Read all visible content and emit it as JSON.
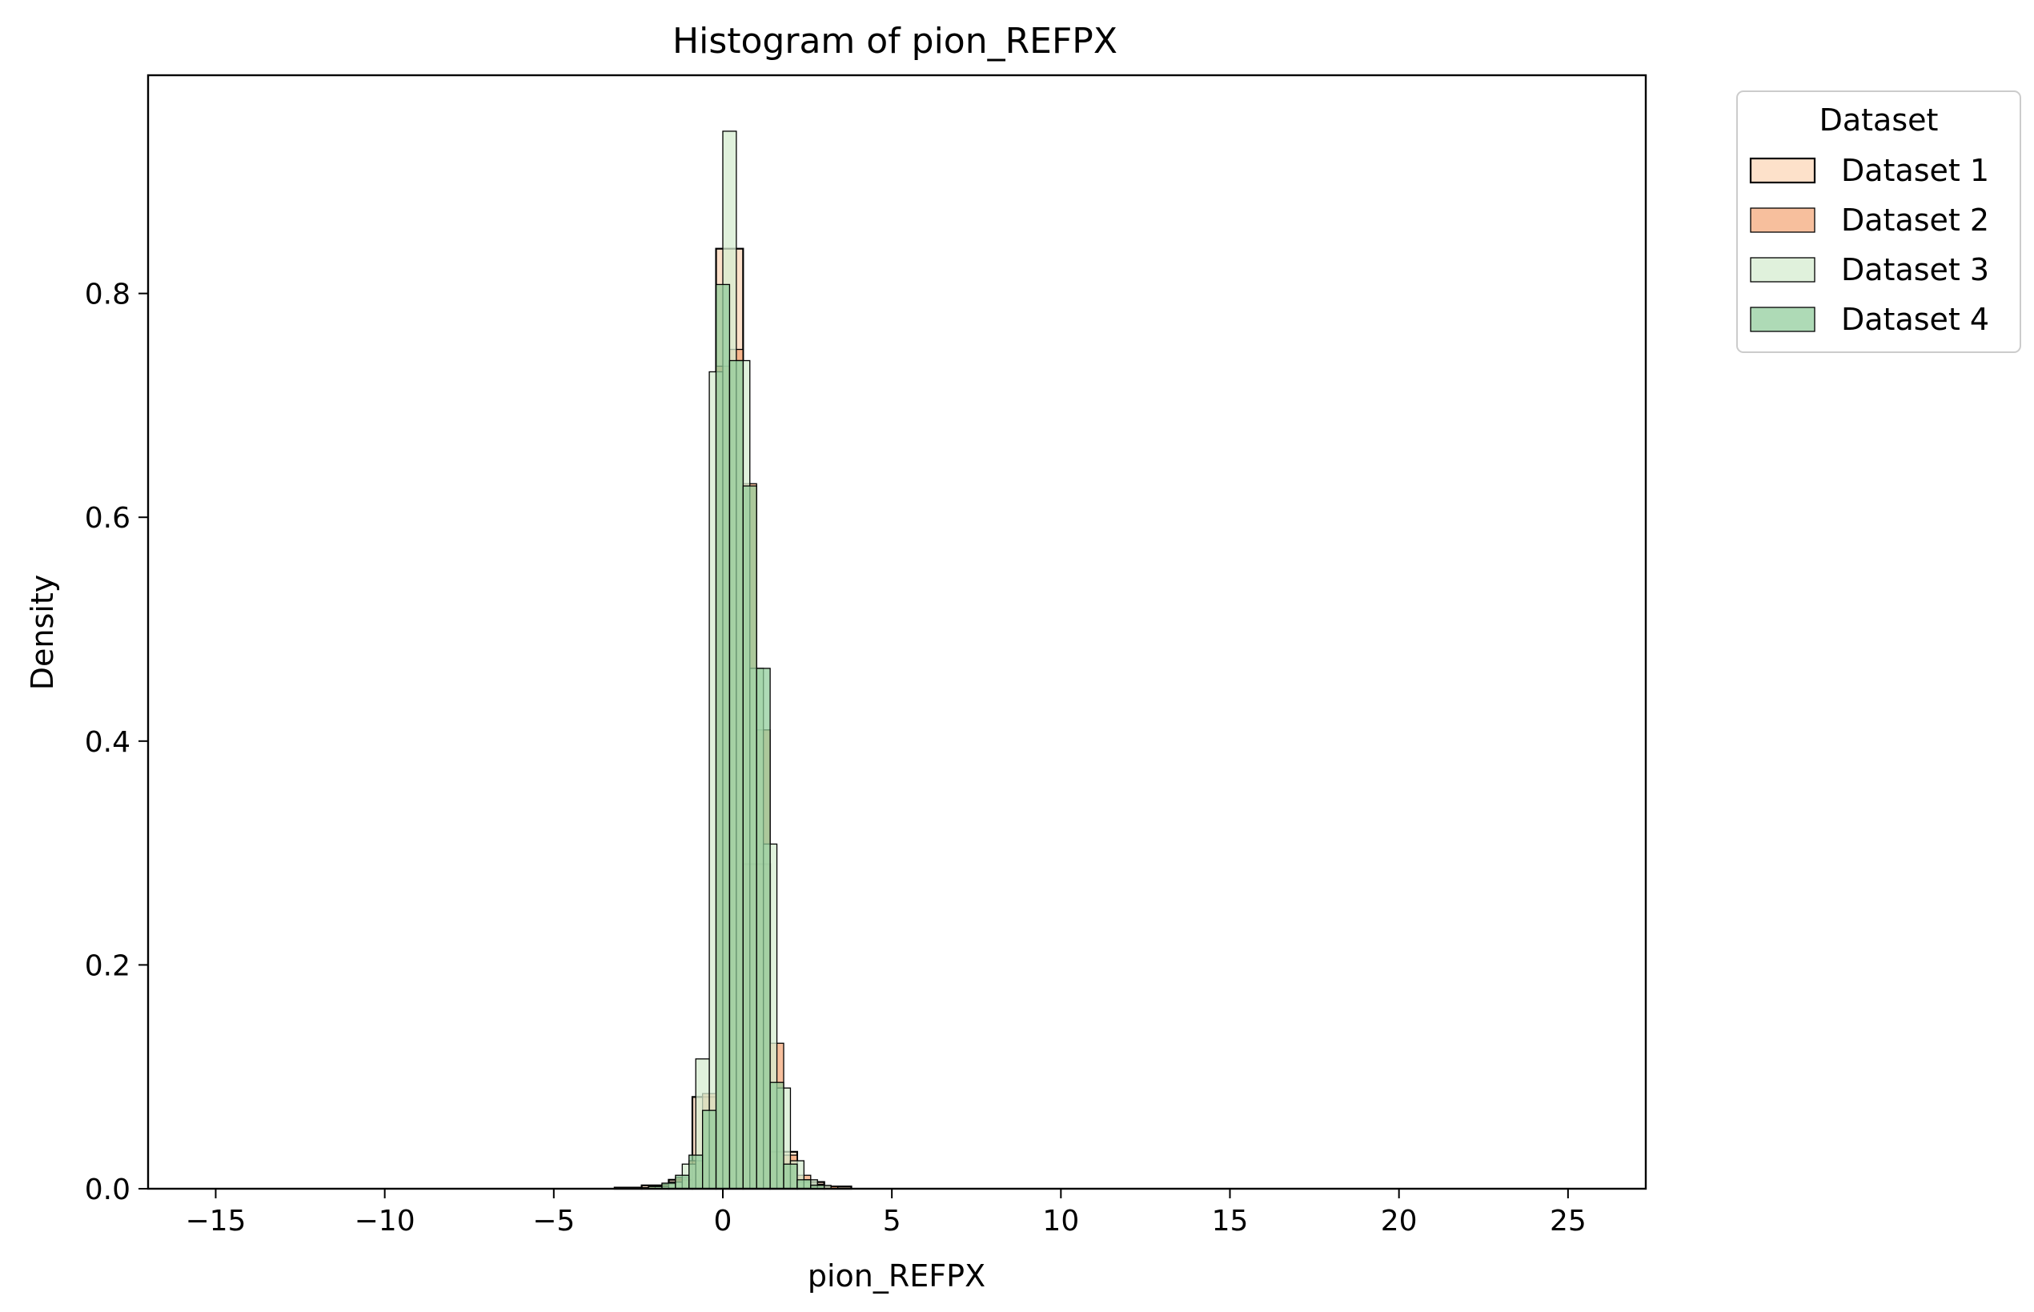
{
  "chart_data": {
    "type": "bar",
    "title": "Histogram of pion_REFPX",
    "xlabel": "pion_REFPX",
    "ylabel": "Density",
    "xlim": [
      -17,
      27.3
    ],
    "ylim": [
      0,
      0.995
    ],
    "xticks": [
      -15,
      -10,
      -5,
      0,
      5,
      10,
      15,
      20,
      25
    ],
    "xtick_labels": [
      "−15",
      "−10",
      "−5",
      "0",
      "5",
      "10",
      "15",
      "20",
      "25"
    ],
    "yticks": [
      0.0,
      0.2,
      0.4,
      0.6,
      0.8
    ],
    "ytick_labels": [
      "0.0",
      "0.2",
      "0.4",
      "0.6",
      "0.8"
    ],
    "grid": false,
    "legend": {
      "title": "Dataset",
      "placement": "outside-top-right"
    },
    "series": [
      {
        "name": "Dataset 1",
        "color": "#fcd5b5",
        "opacity": 0.72,
        "stroke_width": 2.2,
        "bins": [
          {
            "x0": -3.2,
            "x1": -2.4,
            "y": 0.001
          },
          {
            "x0": -2.4,
            "x1": -1.6,
            "y": 0.003
          },
          {
            "x0": -1.6,
            "x1": -0.9,
            "y": 0.008
          },
          {
            "x0": -0.9,
            "x1": -0.2,
            "y": 0.082
          },
          {
            "x0": -0.2,
            "x1": 0.6,
            "y": 0.84
          },
          {
            "x0": 0.6,
            "x1": 1.4,
            "y": 0.29
          },
          {
            "x0": 1.4,
            "x1": 2.2,
            "y": 0.033
          },
          {
            "x0": 2.2,
            "x1": 3.0,
            "y": 0.006
          },
          {
            "x0": 3.0,
            "x1": 3.8,
            "y": 0.002
          }
        ]
      },
      {
        "name": "Dataset 2",
        "color": "#f3a06e",
        "opacity": 0.68,
        "stroke_width": 1.3,
        "bins": [
          {
            "x0": -2.6,
            "x1": -2.2,
            "y": 0.001
          },
          {
            "x0": -2.2,
            "x1": -1.8,
            "y": 0.002
          },
          {
            "x0": -1.8,
            "x1": -1.4,
            "y": 0.004
          },
          {
            "x0": -1.4,
            "x1": -1.0,
            "y": 0.01
          },
          {
            "x0": -1.0,
            "x1": -0.6,
            "y": 0.025
          },
          {
            "x0": -0.6,
            "x1": -0.2,
            "y": 0.085
          },
          {
            "x0": -0.2,
            "x1": 0.2,
            "y": 0.735
          },
          {
            "x0": 0.2,
            "x1": 0.6,
            "y": 0.75
          },
          {
            "x0": 0.6,
            "x1": 1.0,
            "y": 0.63
          },
          {
            "x0": 1.0,
            "x1": 1.4,
            "y": 0.41
          },
          {
            "x0": 1.4,
            "x1": 1.8,
            "y": 0.13
          },
          {
            "x0": 1.8,
            "x1": 2.2,
            "y": 0.03
          },
          {
            "x0": 2.2,
            "x1": 2.6,
            "y": 0.012
          },
          {
            "x0": 2.6,
            "x1": 3.0,
            "y": 0.004
          },
          {
            "x0": 3.0,
            "x1": 3.4,
            "y": 0.002
          }
        ]
      },
      {
        "name": "Dataset 3",
        "color": "#d5ecd0",
        "opacity": 0.75,
        "stroke_width": 1.3,
        "bins": [
          {
            "x0": -2.0,
            "x1": -1.6,
            "y": 0.002
          },
          {
            "x0": -1.6,
            "x1": -1.2,
            "y": 0.006
          },
          {
            "x0": -1.2,
            "x1": -0.8,
            "y": 0.022
          },
          {
            "x0": -0.8,
            "x1": -0.4,
            "y": 0.116
          },
          {
            "x0": -0.4,
            "x1": 0.0,
            "y": 0.73
          },
          {
            "x0": 0.0,
            "x1": 0.4,
            "y": 0.945
          },
          {
            "x0": 0.4,
            "x1": 0.8,
            "y": 0.74
          },
          {
            "x0": 0.8,
            "x1": 1.2,
            "y": 0.465
          },
          {
            "x0": 1.2,
            "x1": 1.6,
            "y": 0.308
          },
          {
            "x0": 1.6,
            "x1": 2.0,
            "y": 0.09
          },
          {
            "x0": 2.0,
            "x1": 2.4,
            "y": 0.025
          },
          {
            "x0": 2.4,
            "x1": 2.8,
            "y": 0.008
          },
          {
            "x0": 2.8,
            "x1": 3.2,
            "y": 0.003
          }
        ]
      },
      {
        "name": "Dataset 4",
        "color": "#8fcc9a",
        "opacity": 0.72,
        "stroke_width": 1.3,
        "bins": [
          {
            "x0": -2.2,
            "x1": -1.8,
            "y": 0.002
          },
          {
            "x0": -1.8,
            "x1": -1.4,
            "y": 0.005
          },
          {
            "x0": -1.4,
            "x1": -1.0,
            "y": 0.012
          },
          {
            "x0": -1.0,
            "x1": -0.6,
            "y": 0.03
          },
          {
            "x0": -0.6,
            "x1": -0.2,
            "y": 0.07
          },
          {
            "x0": -0.2,
            "x1": 0.2,
            "y": 0.808
          },
          {
            "x0": 0.2,
            "x1": 0.6,
            "y": 0.74
          },
          {
            "x0": 0.6,
            "x1": 1.0,
            "y": 0.628
          },
          {
            "x0": 1.0,
            "x1": 1.4,
            "y": 0.465
          },
          {
            "x0": 1.4,
            "x1": 1.8,
            "y": 0.095
          },
          {
            "x0": 1.8,
            "x1": 2.2,
            "y": 0.022
          },
          {
            "x0": 2.2,
            "x1": 2.6,
            "y": 0.008
          },
          {
            "x0": 2.6,
            "x1": 3.0,
            "y": 0.003
          }
        ]
      }
    ]
  }
}
